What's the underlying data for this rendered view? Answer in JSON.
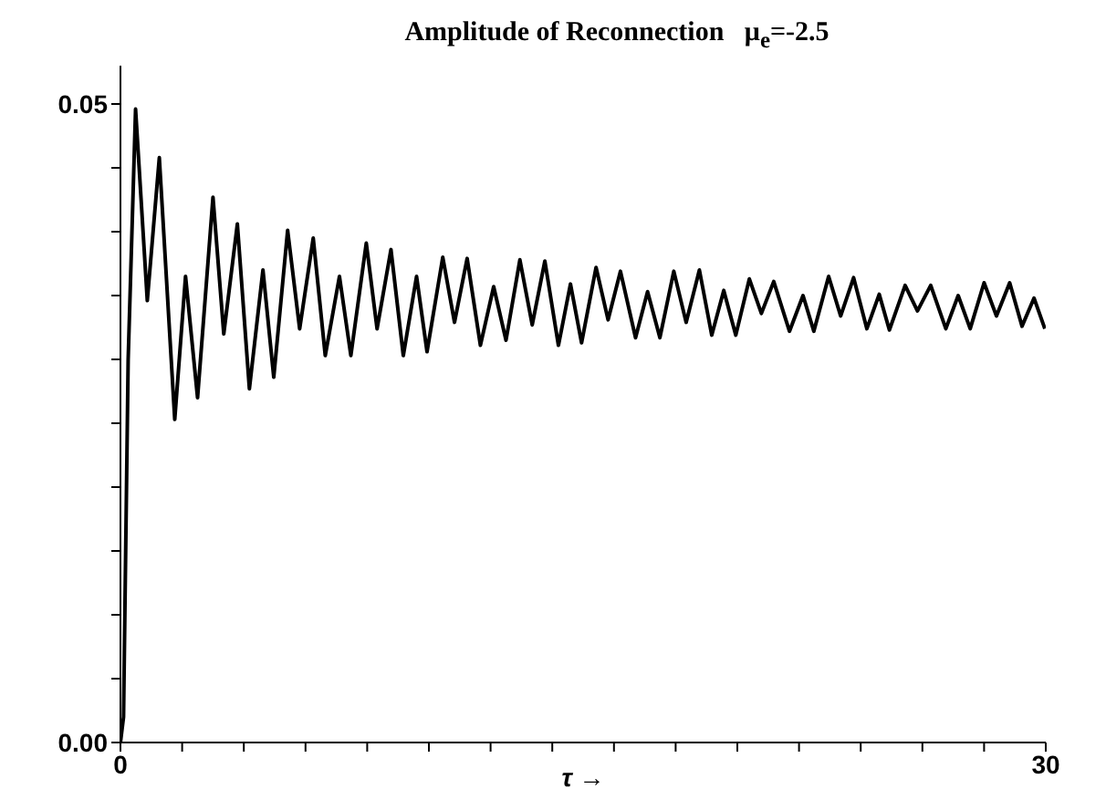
{
  "chart_data": {
    "type": "line",
    "title": "Amplitude of Reconnection   μ$_{e}$=-2.5",
    "xlabel": "τ →",
    "x": [
      0,
      0.1,
      0.25,
      0.49,
      0.87,
      1.26,
      1.76,
      2.11,
      2.5,
      3.0,
      3.35,
      3.79,
      4.18,
      4.62,
      4.97,
      5.42,
      5.81,
      6.25,
      6.64,
      7.1,
      7.47,
      7.97,
      8.32,
      8.77,
      9.17,
      9.6,
      9.94,
      10.45,
      10.83,
      11.24,
      11.67,
      12.1,
      12.5,
      12.95,
      13.35,
      13.76,
      14.2,
      14.59,
      14.95,
      15.42,
      15.81,
      16.21,
      16.7,
      17.09,
      17.49,
      17.94,
      18.34,
      18.77,
      19.17,
      19.56,
      19.95,
      20.39,
      20.78,
      21.18,
      21.69,
      22.13,
      22.48,
      22.96,
      23.35,
      23.77,
      24.2,
      24.6,
      24.93,
      25.44,
      25.84,
      26.27,
      26.76,
      27.16,
      27.55,
      28.0,
      28.4,
      28.83,
      29.23,
      29.62,
      29.97
    ],
    "series": [
      {
        "color": "#000000",
        "values": [
          0,
          0.002,
          0.03,
          0.0496,
          0.0346,
          0.0458,
          0.0253,
          0.0365,
          0.027,
          0.0427,
          0.032,
          0.0406,
          0.0277,
          0.037,
          0.0286,
          0.0401,
          0.0324,
          0.0395,
          0.0303,
          0.0365,
          0.0303,
          0.0391,
          0.0324,
          0.0386,
          0.0303,
          0.0365,
          0.0306,
          0.038,
          0.0329,
          0.0379,
          0.0311,
          0.0357,
          0.0315,
          0.0378,
          0.0327,
          0.0377,
          0.0311,
          0.0359,
          0.0313,
          0.0372,
          0.0331,
          0.0369,
          0.0317,
          0.0353,
          0.0317,
          0.0369,
          0.0329,
          0.037,
          0.0319,
          0.0354,
          0.0319,
          0.0363,
          0.0336,
          0.0361,
          0.0322,
          0.035,
          0.0322,
          0.0365,
          0.0334,
          0.0364,
          0.0324,
          0.0351,
          0.0323,
          0.0358,
          0.0338,
          0.0358,
          0.0324,
          0.035,
          0.0324,
          0.036,
          0.0334,
          0.036,
          0.0326,
          0.0348,
          0.0324
        ]
      }
    ],
    "xlim": [
      0,
      30
    ],
    "xticks": [
      0,
      {
        "value": 2,
        "label": null
      },
      {
        "value": 4,
        "label": null
      },
      {
        "value": 6,
        "label": null
      },
      {
        "value": 8,
        "label": null
      },
      {
        "value": 10,
        "label": null
      },
      {
        "value": 12,
        "label": null
      },
      {
        "value": 14,
        "label": null
      },
      {
        "value": 16,
        "label": null
      },
      {
        "value": 18,
        "label": null
      },
      {
        "value": 20,
        "label": null
      },
      {
        "value": 22,
        "label": null
      },
      {
        "value": 24,
        "label": null
      },
      {
        "value": 26,
        "label": null
      },
      {
        "value": 28,
        "label": null
      },
      30
    ],
    "ylim": [
      0,
      0.053
    ],
    "yticks": [
      {
        "value": 0,
        "label": "0.00"
      },
      {
        "value": 0.005,
        "label": null
      },
      {
        "value": 0.01,
        "label": null
      },
      {
        "value": 0.015,
        "label": null
      },
      {
        "value": 0.02,
        "label": null
      },
      {
        "value": 0.025,
        "label": null
      },
      {
        "value": 0.03,
        "label": null
      },
      {
        "value": 0.035,
        "label": null
      },
      {
        "value": 0.04,
        "label": null
      },
      {
        "value": 0.045,
        "label": null
      },
      {
        "value": 0.05,
        "label": "0.05"
      }
    ],
    "grid": false,
    "legend": false,
    "marker": "none",
    "line_style": "solid"
  }
}
